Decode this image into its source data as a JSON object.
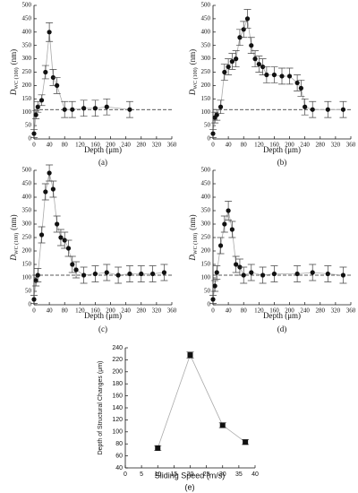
{
  "chart_data": [
    {
      "type": "scatter",
      "caption": "(a)",
      "x_label": "Depth (μm)",
      "y_label": {
        "main": "D",
        "sub": "WC (100)",
        "unit": "(nm)"
      },
      "x": [
        0,
        5,
        10,
        20,
        30,
        40,
        50,
        60,
        80,
        100,
        130,
        160,
        190,
        250
      ],
      "values": [
        20,
        90,
        120,
        145,
        250,
        400,
        230,
        200,
        110,
        110,
        115,
        115,
        120,
        110
      ],
      "errors": [
        15,
        15,
        20,
        20,
        25,
        35,
        30,
        30,
        30,
        30,
        30,
        30,
        30,
        30
      ],
      "xlim": [
        0,
        360
      ],
      "xticks": [
        0,
        40,
        80,
        120,
        160,
        200,
        240,
        280,
        320,
        360
      ],
      "ylim": [
        0,
        500
      ],
      "yticks": [
        0,
        50,
        100,
        150,
        200,
        250,
        300,
        350,
        400,
        450,
        500
      ],
      "reference_line": 110,
      "marker": "circle",
      "color": "#111111"
    },
    {
      "type": "scatter",
      "caption": "(b)",
      "x_label": "Depth (μm)",
      "y_label": {
        "main": "D",
        "sub": "WC (100)",
        "unit": "(nm)"
      },
      "x": [
        0,
        5,
        10,
        20,
        30,
        40,
        50,
        60,
        70,
        80,
        90,
        100,
        110,
        120,
        130,
        140,
        160,
        180,
        200,
        220,
        230,
        240,
        260,
        300,
        340
      ],
      "values": [
        20,
        80,
        90,
        120,
        250,
        270,
        290,
        300,
        380,
        410,
        450,
        350,
        300,
        280,
        270,
        240,
        240,
        235,
        235,
        210,
        190,
        120,
        110,
        110,
        110
      ],
      "errors": [
        15,
        20,
        20,
        25,
        30,
        30,
        30,
        30,
        30,
        30,
        35,
        30,
        30,
        30,
        30,
        30,
        30,
        30,
        30,
        30,
        30,
        30,
        30,
        30,
        30
      ],
      "xlim": [
        0,
        360
      ],
      "xticks": [
        0,
        40,
        80,
        120,
        160,
        200,
        240,
        280,
        320,
        360
      ],
      "ylim": [
        0,
        500
      ],
      "yticks": [
        0,
        50,
        100,
        150,
        200,
        250,
        300,
        350,
        400,
        450,
        500
      ],
      "reference_line": 110,
      "marker": "circle",
      "color": "#111111"
    },
    {
      "type": "scatter",
      "caption": "(c)",
      "x_label": "Depth (μm)",
      "y_label": {
        "main": "D",
        "sub": "WC (100)",
        "unit": "(nm)"
      },
      "x": [
        0,
        5,
        10,
        20,
        30,
        40,
        50,
        60,
        70,
        80,
        90,
        100,
        110,
        130,
        160,
        190,
        220,
        250,
        280,
        310,
        340
      ],
      "values": [
        20,
        90,
        110,
        260,
        420,
        490,
        430,
        300,
        250,
        240,
        210,
        150,
        130,
        110,
        115,
        120,
        110,
        115,
        115,
        115,
        120
      ],
      "errors": [
        15,
        20,
        25,
        30,
        30,
        30,
        30,
        30,
        30,
        30,
        30,
        30,
        30,
        30,
        30,
        30,
        30,
        30,
        30,
        30,
        30
      ],
      "xlim": [
        0,
        360
      ],
      "xticks": [
        0,
        40,
        80,
        120,
        160,
        200,
        240,
        280,
        320,
        360
      ],
      "ylim": [
        0,
        500
      ],
      "yticks": [
        0,
        50,
        100,
        150,
        200,
        250,
        300,
        350,
        400,
        450,
        500
      ],
      "reference_line": 110,
      "marker": "circle",
      "color": "#111111"
    },
    {
      "type": "scatter",
      "caption": "(d)",
      "x_label": "Depth (μm)",
      "y_label": {
        "main": "D",
        "sub": "WC (100)",
        "unit": "(nm)"
      },
      "x": [
        0,
        5,
        10,
        20,
        30,
        40,
        50,
        60,
        70,
        80,
        100,
        130,
        160,
        220,
        260,
        300,
        340
      ],
      "values": [
        20,
        70,
        120,
        220,
        300,
        350,
        280,
        150,
        140,
        110,
        120,
        110,
        115,
        115,
        120,
        115,
        110
      ],
      "errors": [
        15,
        20,
        25,
        30,
        30,
        35,
        30,
        30,
        30,
        30,
        30,
        30,
        30,
        30,
        30,
        30,
        30
      ],
      "xlim": [
        0,
        360
      ],
      "xticks": [
        0,
        40,
        80,
        120,
        160,
        200,
        240,
        280,
        320,
        360
      ],
      "ylim": [
        0,
        500
      ],
      "yticks": [
        0,
        50,
        100,
        150,
        200,
        250,
        300,
        350,
        400,
        450,
        500
      ],
      "reference_line": 110,
      "marker": "circle",
      "color": "#111111"
    },
    {
      "type": "scatter",
      "caption": "(e)",
      "x_label": "Sliding Speed (m/s)",
      "y_label": {
        "main": "Depth of Structural Changes (μm)"
      },
      "x": [
        10,
        20,
        30,
        37
      ],
      "values": [
        73,
        228,
        111,
        83
      ],
      "errors": [
        4,
        5,
        4,
        4
      ],
      "xlim": [
        0,
        40
      ],
      "xticks": [
        0,
        5,
        10,
        15,
        20,
        25,
        30,
        35,
        40
      ],
      "ylim": [
        40,
        240
      ],
      "yticks": [
        40,
        60,
        80,
        100,
        120,
        140,
        160,
        180,
        200,
        220,
        240
      ],
      "marker": "square",
      "color": "#111111"
    }
  ]
}
